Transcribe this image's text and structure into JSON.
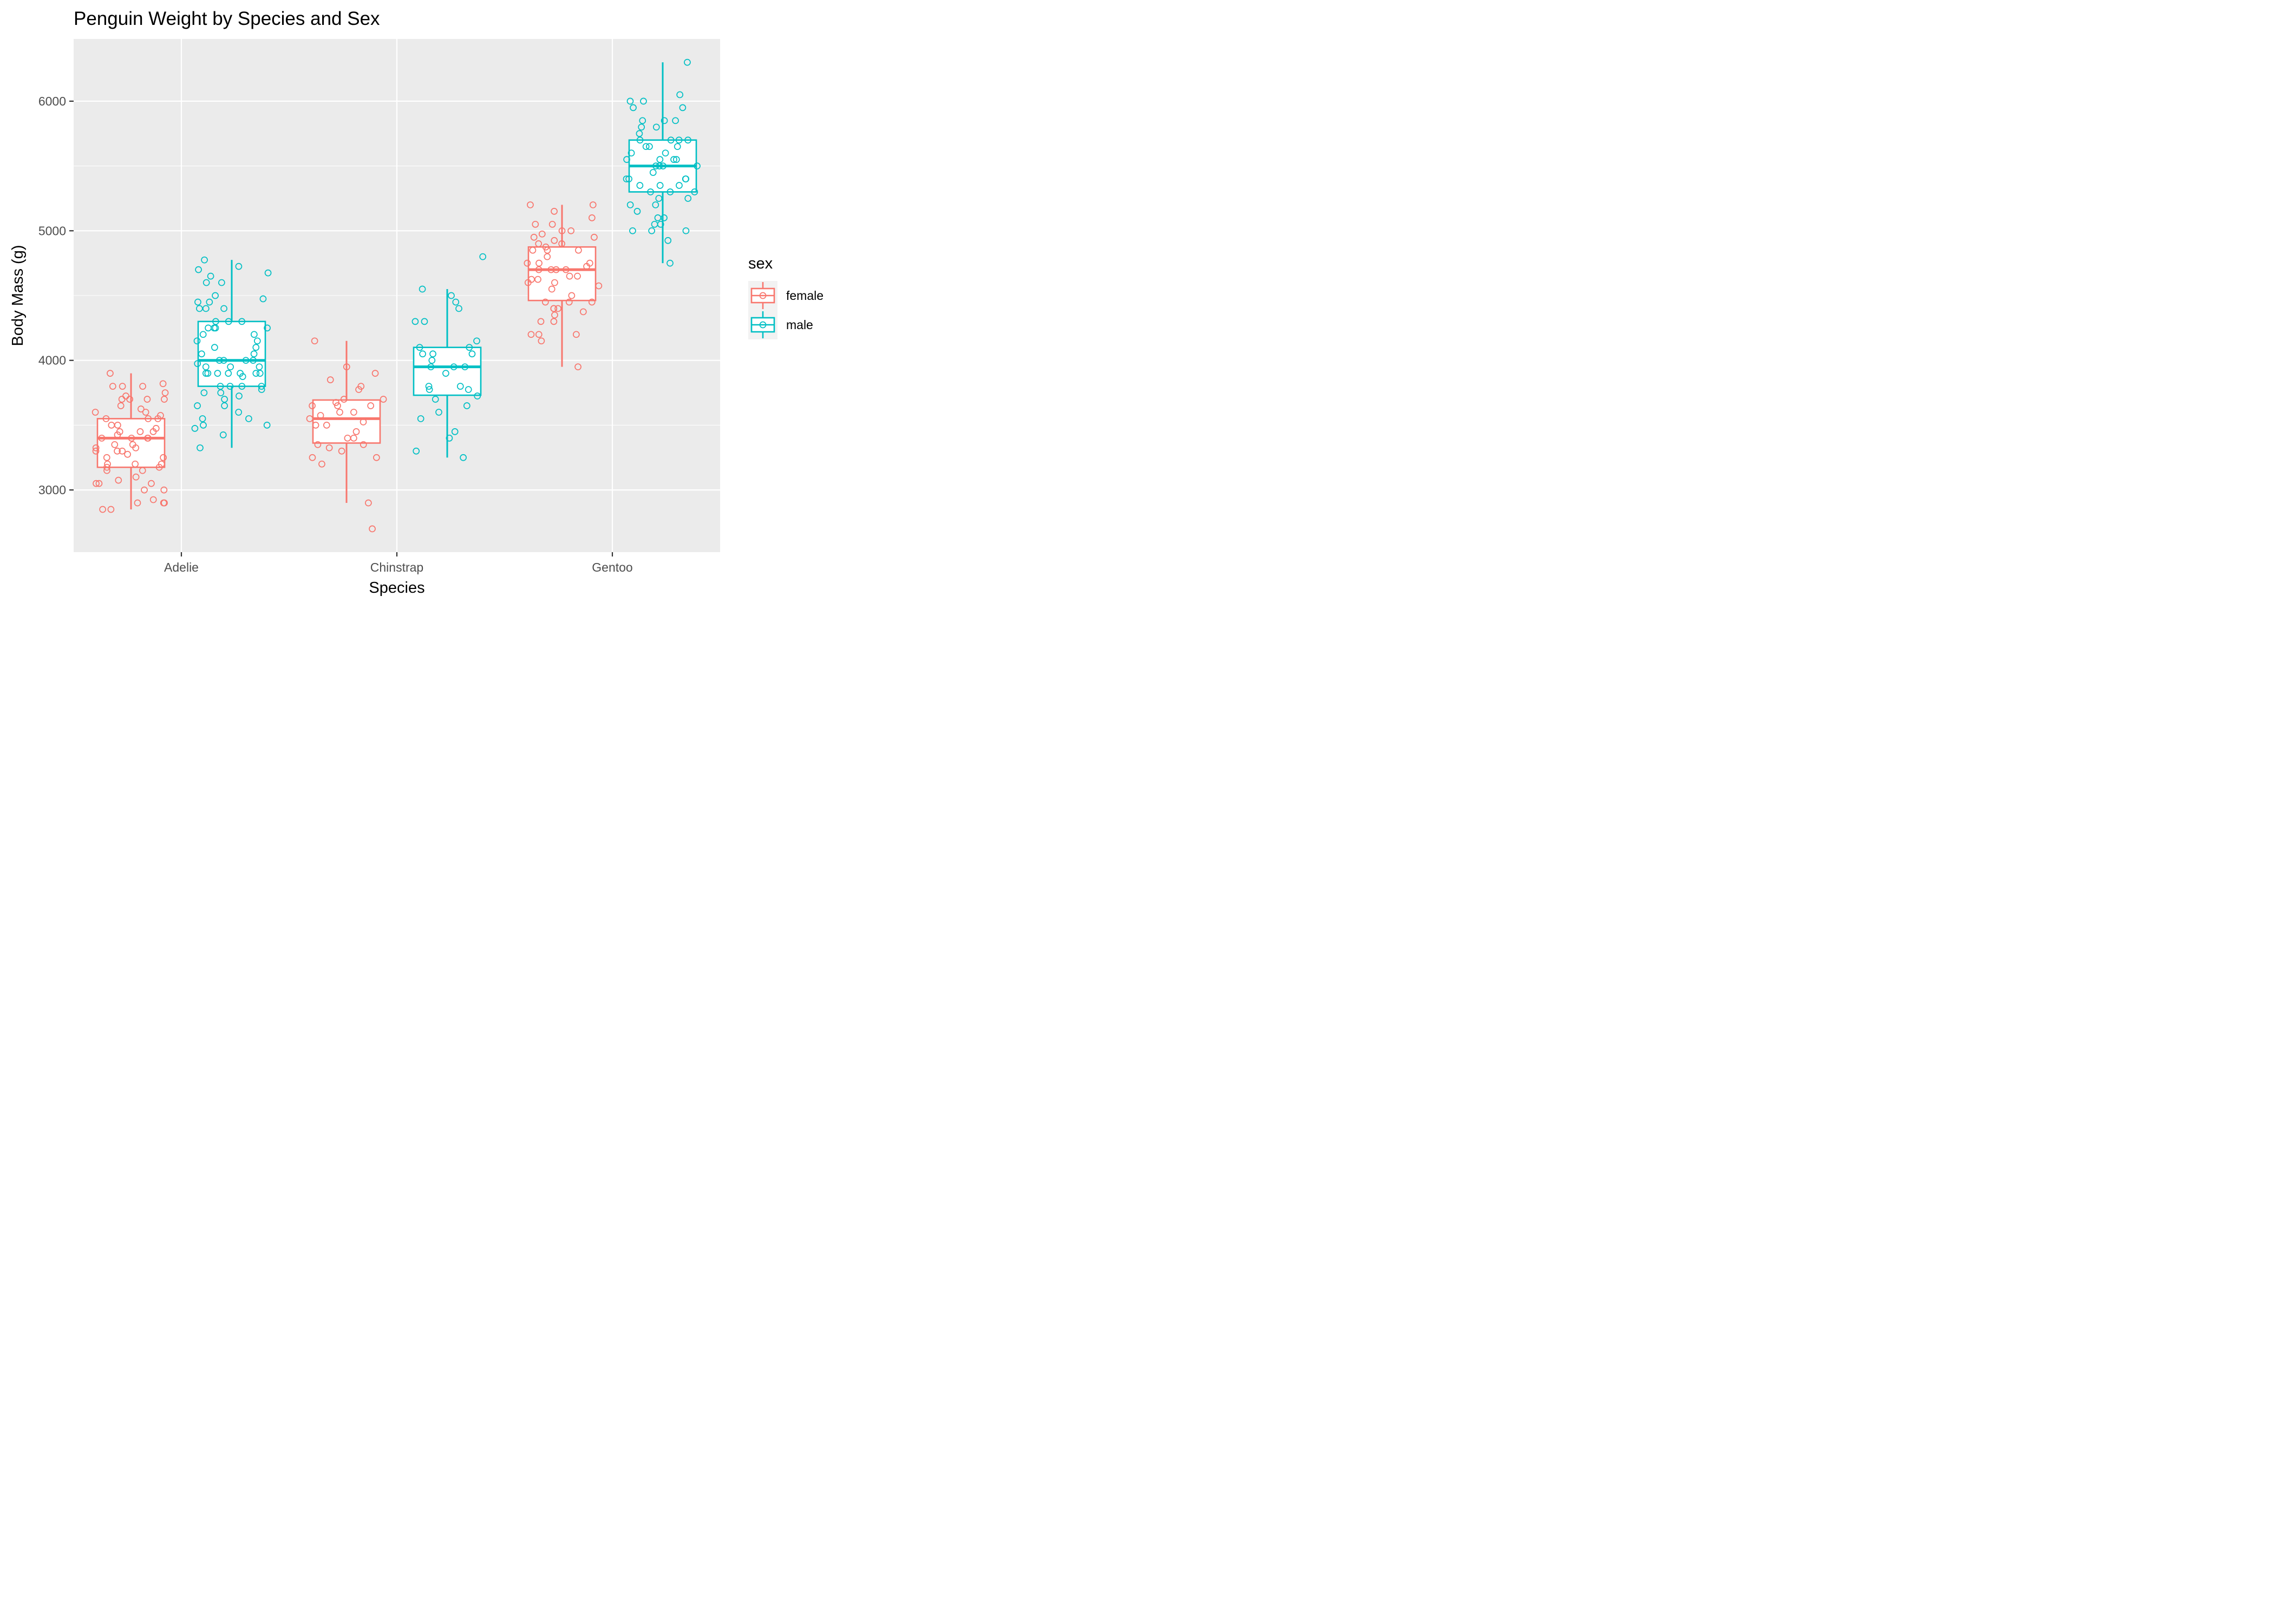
{
  "chart_data": {
    "type": "boxplot",
    "title": "Penguin Weight by Species and Sex",
    "xlabel": "Species",
    "ylabel": "Body Mass (g)",
    "categories": [
      "Adelie",
      "Chinstrap",
      "Gentoo"
    ],
    "ylim": [
      2520,
      6480
    ],
    "yticks": [
      3000,
      4000,
      5000,
      6000
    ],
    "grid": true,
    "legend": {
      "title": "sex",
      "position": "right"
    },
    "colors": {
      "female": "#F8766D",
      "male": "#00BFC4",
      "panel": "#EBEBEB",
      "grid": "#FFFFFF"
    },
    "series": [
      {
        "name": "female",
        "boxes": [
          {
            "category": "Adelie",
            "min": 2850,
            "q1": 3175,
            "median": 3400,
            "q3": 3550,
            "max": 3900,
            "points": [
              3900,
              3820,
              3800,
              3800,
              3800,
              3750,
              3725,
              3700,
              3700,
              3700,
              3700,
              3650,
              3625,
              3600,
              3600,
              3575,
              3550,
              3550,
              3550,
              3500,
              3500,
              3475,
              3450,
              3450,
              3450,
              3425,
              3400,
              3400,
              3400,
              3400,
              3350,
              3350,
              3325,
              3325,
              3300,
              3300,
              3300,
              3275,
              3250,
              3250,
              3200,
              3200,
              3200,
              3175,
              3175,
              3150,
              3150,
              3100,
              3075,
              3050,
              3050,
              3050,
              3000,
              3000,
              2925,
              2900,
              2900,
              2900,
              2850,
              2850
            ]
          },
          {
            "category": "Chinstrap",
            "min": 2900,
            "q1": 3362,
            "median": 3550,
            "q3": 3694,
            "max": 4150,
            "points": [
              4150,
              3950,
              3900,
              3850,
              3800,
              3775,
              3700,
              3700,
              3675,
              3650,
              3650,
              3650,
              3600,
              3600,
              3575,
              3550,
              3525,
              3500,
              3500,
              3450,
              3400,
              3400,
              3350,
              3350,
              3325,
              3300,
              3250,
              3250,
              3200,
              2900,
              2700
            ]
          },
          {
            "category": "Gentoo",
            "min": 3950,
            "q1": 4462,
            "median": 4700,
            "q3": 4875,
            "max": 5200,
            "points": [
              5200,
              5200,
              5150,
              5100,
              5050,
              5050,
              5000,
              5000,
              4975,
              4950,
              4950,
              4925,
              4900,
              4900,
              4875,
              4850,
              4850,
              4850,
              4800,
              4750,
              4750,
              4750,
              4725,
              4700,
              4700,
              4700,
              4700,
              4650,
              4650,
              4625,
              4625,
              4600,
              4600,
              4575,
              4550,
              4500,
              4450,
              4450,
              4450,
              4400,
              4400,
              4400,
              4375,
              4350,
              4300,
              4300,
              4200,
              4200,
              4200,
              4150,
              3950
            ]
          }
        ]
      },
      {
        "name": "male",
        "boxes": [
          {
            "category": "Adelie",
            "min": 3325,
            "q1": 3800,
            "median": 4000,
            "q3": 4300,
            "max": 4775,
            "points": [
              4775,
              4725,
              4700,
              4675,
              4650,
              4600,
              4600,
              4500,
              4475,
              4450,
              4450,
              4400,
              4400,
              4400,
              4300,
              4300,
              4300,
              4250,
              4250,
              4250,
              4250,
              4200,
              4200,
              4150,
              4150,
              4100,
              4100,
              4050,
              4050,
              4000,
              4000,
              4000,
              4000,
              3975,
              3950,
              3950,
              3950,
              3900,
              3900,
              3900,
              3900,
              3900,
              3900,
              3900,
              3875,
              3800,
              3800,
              3800,
              3800,
              3775,
              3750,
              3750,
              3725,
              3700,
              3650,
              3650,
              3600,
              3550,
              3550,
              3500,
              3500,
              3475,
              3425,
              3325
            ]
          },
          {
            "category": "Chinstrap",
            "min": 3250,
            "q1": 3731,
            "median": 3950,
            "q3": 4100,
            "max": 4550,
            "points": [
              4800,
              4550,
              4500,
              4450,
              4400,
              4300,
              4300,
              4150,
              4100,
              4100,
              4050,
              4050,
              4050,
              4000,
              3950,
              3950,
              3950,
              3900,
              3800,
              3800,
              3775,
              3775,
              3725,
              3700,
              3650,
              3600,
              3550,
              3450,
              3400,
              3300,
              3250
            ]
          },
          {
            "category": "Gentoo",
            "min": 4750,
            "q1": 5300,
            "median": 5500,
            "q3": 5700,
            "max": 6300,
            "points": [
              6300,
              6050,
              6000,
              6000,
              5950,
              5950,
              5850,
              5850,
              5850,
              5800,
              5800,
              5750,
              5700,
              5700,
              5700,
              5700,
              5650,
              5650,
              5650,
              5600,
              5600,
              5550,
              5550,
              5550,
              5550,
              5500,
              5500,
              5500,
              5500,
              5450,
              5400,
              5400,
              5400,
              5400,
              5350,
              5350,
              5350,
              5300,
              5300,
              5300,
              5250,
              5250,
              5200,
              5200,
              5150,
              5100,
              5100,
              5050,
              5050,
              5000,
              5000,
              5000,
              4925,
              4750
            ]
          }
        ]
      }
    ]
  }
}
